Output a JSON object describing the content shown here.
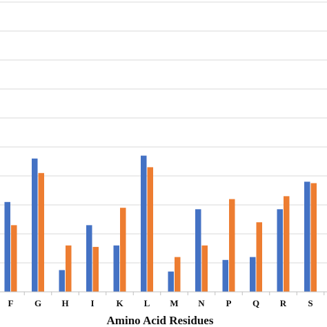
{
  "chart_data": {
    "type": "bar",
    "categories": [
      "F",
      "G",
      "H",
      "I",
      "K",
      "L",
      "M",
      "N",
      "P",
      "Q",
      "R",
      "S"
    ],
    "series": [
      {
        "color": "#4472C4",
        "values": [
          3.1,
          4.6,
          0.75,
          2.3,
          1.6,
          4.7,
          0.7,
          2.85,
          1.1,
          1.2,
          2.85,
          3.8
        ]
      },
      {
        "color": "#ED7D31",
        "values": [
          2.3,
          4.1,
          1.6,
          1.55,
          2.9,
          4.3,
          1.2,
          1.6,
          3.2,
          2.4,
          3.3,
          3.75
        ]
      }
    ],
    "ylim": [
      0,
      10
    ],
    "gridlines": true,
    "xlabel": "Amino Acid Residues",
    "ylabel": ""
  },
  "colors": {
    "gridline": "#d9d9d9",
    "axis": "#bfbfbf"
  }
}
